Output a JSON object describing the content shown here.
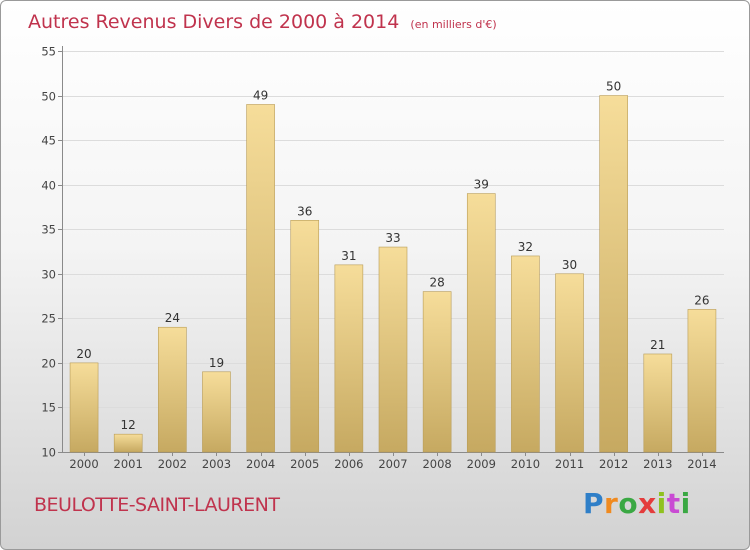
{
  "chart_data": {
    "type": "bar",
    "title": "Autres Revenus Divers de 2000 à 2014",
    "subtitle": "(en milliers d'€)",
    "categories": [
      "2000",
      "2001",
      "2002",
      "2003",
      "2004",
      "2005",
      "2006",
      "2007",
      "2008",
      "2009",
      "2010",
      "2011",
      "2012",
      "2013",
      "2014"
    ],
    "values": [
      20,
      12,
      24,
      19,
      49,
      36,
      31,
      33,
      28,
      39,
      32,
      30,
      50,
      21,
      26
    ],
    "ylim": [
      10,
      55
    ],
    "yticks": [
      10,
      15,
      20,
      25,
      30,
      35,
      40,
      45,
      50,
      55
    ],
    "grid": true,
    "bar_color_top": "#f6dd9a",
    "bar_color_bottom": "#c6a961"
  },
  "location": "BEULOTTE-SAINT-LAURENT",
  "logo": {
    "letters": [
      "P",
      "r",
      "o",
      "x",
      "i",
      "t",
      "i"
    ]
  }
}
